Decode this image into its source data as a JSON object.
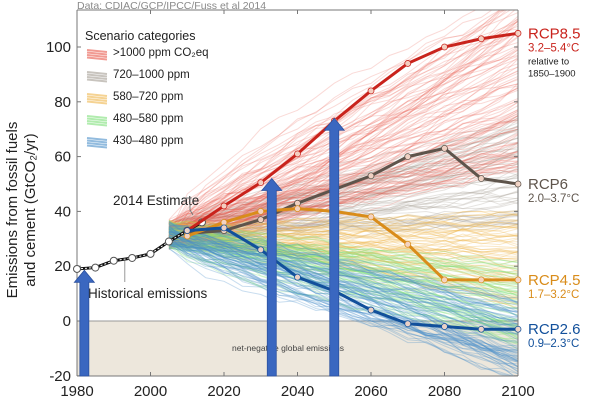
{
  "chart_data": {
    "type": "line",
    "source": "Data: CDIAC/GCP/IPCC/Fuss et al 2014",
    "ylabel_line1": "Emissions from fossil fuels",
    "ylabel_line2": "and cement (GtCO₂/yr)",
    "xlim": [
      1980,
      2100
    ],
    "ylim": [
      -20,
      110
    ],
    "x_ticks": [
      1980,
      2000,
      2020,
      2040,
      2060,
      2080,
      2100
    ],
    "y_ticks": [
      -20,
      0,
      20,
      40,
      60,
      80,
      100
    ],
    "grid": false,
    "legend": {
      "title": "Scenario categories",
      "placement": "top-left",
      "entries": [
        {
          "label": ">1000 ppm CO₂eq",
          "color": "#e8584a"
        },
        {
          "label": "720–1000 ppm",
          "color": "#a59d94"
        },
        {
          "label": "580–720 ppm",
          "color": "#f0b64c"
        },
        {
          "label": "480–580 ppm",
          "color": "#7ee07a"
        },
        {
          "label": "430–480 ppm",
          "color": "#4a8fc9"
        }
      ]
    },
    "historical": {
      "name": "Historical emissions",
      "x": [
        1980,
        1985,
        1990,
        1995,
        2000,
        2005,
        2010,
        2014
      ],
      "y": [
        19,
        19.5,
        22,
        23,
        24.5,
        29,
        33,
        36
      ]
    },
    "estimate_label": "2014 Estimate",
    "historical_label": "Historical emissions",
    "net_negative_label": "net-negative global emissions",
    "series": [
      {
        "name": "RCP8.5",
        "range": "3.2–5.4°C",
        "note1": "relative to",
        "note2": "1850–1900",
        "color": "#c9231c",
        "x": [
          2010,
          2020,
          2030,
          2040,
          2050,
          2060,
          2070,
          2080,
          2090,
          2100
        ],
        "y": [
          33,
          42,
          50.5,
          61,
          73,
          84,
          94,
          100,
          103,
          105
        ]
      },
      {
        "name": "RCP6",
        "range": "2.0–3.7°C",
        "color": "#5e544b",
        "x": [
          2010,
          2020,
          2030,
          2040,
          2050,
          2060,
          2070,
          2080,
          2090,
          2100
        ],
        "y": [
          32,
          33,
          37,
          43,
          48,
          53,
          60,
          63,
          52,
          50
        ]
      },
      {
        "name": "RCP4.5",
        "range": "1.7–3.2°C",
        "color": "#d98c1a",
        "x": [
          2010,
          2020,
          2030,
          2040,
          2050,
          2060,
          2070,
          2080,
          2090,
          2100
        ],
        "y": [
          31,
          36,
          40,
          41,
          40,
          38,
          28,
          15,
          15,
          15
        ]
      },
      {
        "name": "RCP2.6",
        "range": "0.9–2.3°C",
        "color": "#12509b",
        "x": [
          2010,
          2020,
          2030,
          2040,
          2050,
          2060,
          2070,
          2080,
          2090,
          2100
        ],
        "y": [
          33,
          34,
          26,
          16,
          11,
          4,
          -1,
          -2,
          -3,
          -3
        ]
      }
    ],
    "arrows": [
      {
        "x": 1982,
        "y_tip": 18.5
      },
      {
        "x": 2033,
        "y_tip": 52
      },
      {
        "x": 2050,
        "y_tip": 74
      }
    ],
    "arrow_color": "#3a67c0"
  }
}
